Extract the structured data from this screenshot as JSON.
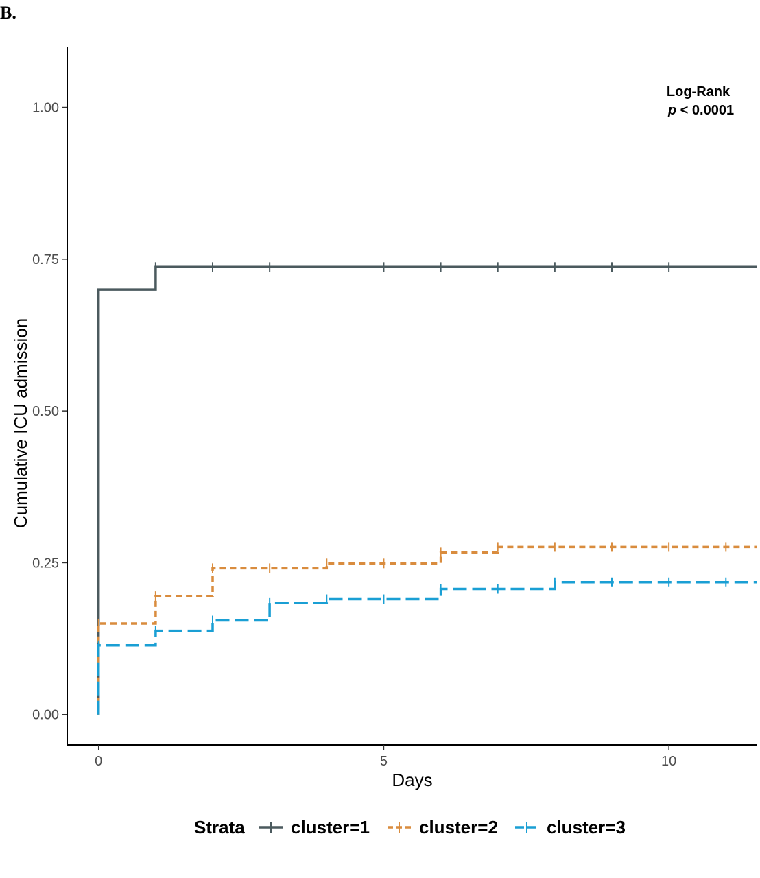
{
  "panel_label": "B.",
  "chart_data": {
    "type": "line",
    "subtype": "kaplan-meier-cumulative-step",
    "xlabel": "Days",
    "ylabel": "Cumulative ICU admission",
    "xlim": [
      -0.55,
      11.55
    ],
    "ylim": [
      -0.05,
      1.1
    ],
    "x_ticks": [
      0,
      5,
      10
    ],
    "x_tick_labels": [
      "0",
      "5",
      "10"
    ],
    "y_ticks": [
      0.0,
      0.25,
      0.5,
      0.75,
      1.0
    ],
    "y_tick_labels": [
      "0.00",
      "0.25",
      "0.50",
      "0.75",
      "1.00"
    ],
    "grid": false,
    "annotation": {
      "line1": "Log-Rank",
      "p_symbol": "p",
      "p_rest": " < 0.0001"
    },
    "legend": {
      "title": "Strata",
      "position": "bottom"
    },
    "series": [
      {
        "name": "cluster=1",
        "color": "#4b5a5e",
        "dash": "solid",
        "steps": [
          [
            0,
            0.0
          ],
          [
            0,
            0.7
          ],
          [
            1,
            0.7
          ],
          [
            1,
            0.737
          ],
          [
            11.55,
            0.737
          ]
        ],
        "censor_x": [
          1,
          2,
          3,
          5,
          6,
          7,
          8,
          9,
          10
        ],
        "censor_y": 0.737
      },
      {
        "name": "cluster=2",
        "color": "#d98c3e",
        "dash": "short",
        "steps": [
          [
            0,
            0.0
          ],
          [
            0,
            0.15
          ],
          [
            1,
            0.15
          ],
          [
            1,
            0.195
          ],
          [
            2,
            0.195
          ],
          [
            2,
            0.241
          ],
          [
            4,
            0.241
          ],
          [
            4,
            0.249
          ],
          [
            6,
            0.249
          ],
          [
            6,
            0.267
          ],
          [
            7,
            0.267
          ],
          [
            7,
            0.276
          ],
          [
            11.55,
            0.276
          ]
        ],
        "censor_x": [
          0,
          1,
          2,
          3,
          4,
          5,
          6,
          7,
          8,
          9,
          10,
          11
        ],
        "censor_y_values": [
          0.15,
          0.195,
          0.241,
          0.241,
          0.249,
          0.249,
          0.267,
          0.276,
          0.276,
          0.276,
          0.276,
          0.276
        ]
      },
      {
        "name": "cluster=3",
        "color": "#1a9fd4",
        "dash": "long",
        "steps": [
          [
            0,
            0.0
          ],
          [
            0,
            0.114
          ],
          [
            1,
            0.114
          ],
          [
            1,
            0.138
          ],
          [
            2,
            0.138
          ],
          [
            2,
            0.155
          ],
          [
            3,
            0.155
          ],
          [
            3,
            0.184
          ],
          [
            4,
            0.184
          ],
          [
            4,
            0.19
          ],
          [
            6,
            0.19
          ],
          [
            6,
            0.207
          ],
          [
            8,
            0.207
          ],
          [
            8,
            0.218
          ],
          [
            11.55,
            0.218
          ]
        ],
        "censor_x": [
          0,
          1,
          2,
          3,
          4,
          5,
          6,
          7,
          8,
          9,
          10,
          11
        ],
        "censor_y_values": [
          0.114,
          0.138,
          0.155,
          0.184,
          0.19,
          0.19,
          0.207,
          0.207,
          0.218,
          0.218,
          0.218,
          0.218
        ]
      }
    ]
  }
}
